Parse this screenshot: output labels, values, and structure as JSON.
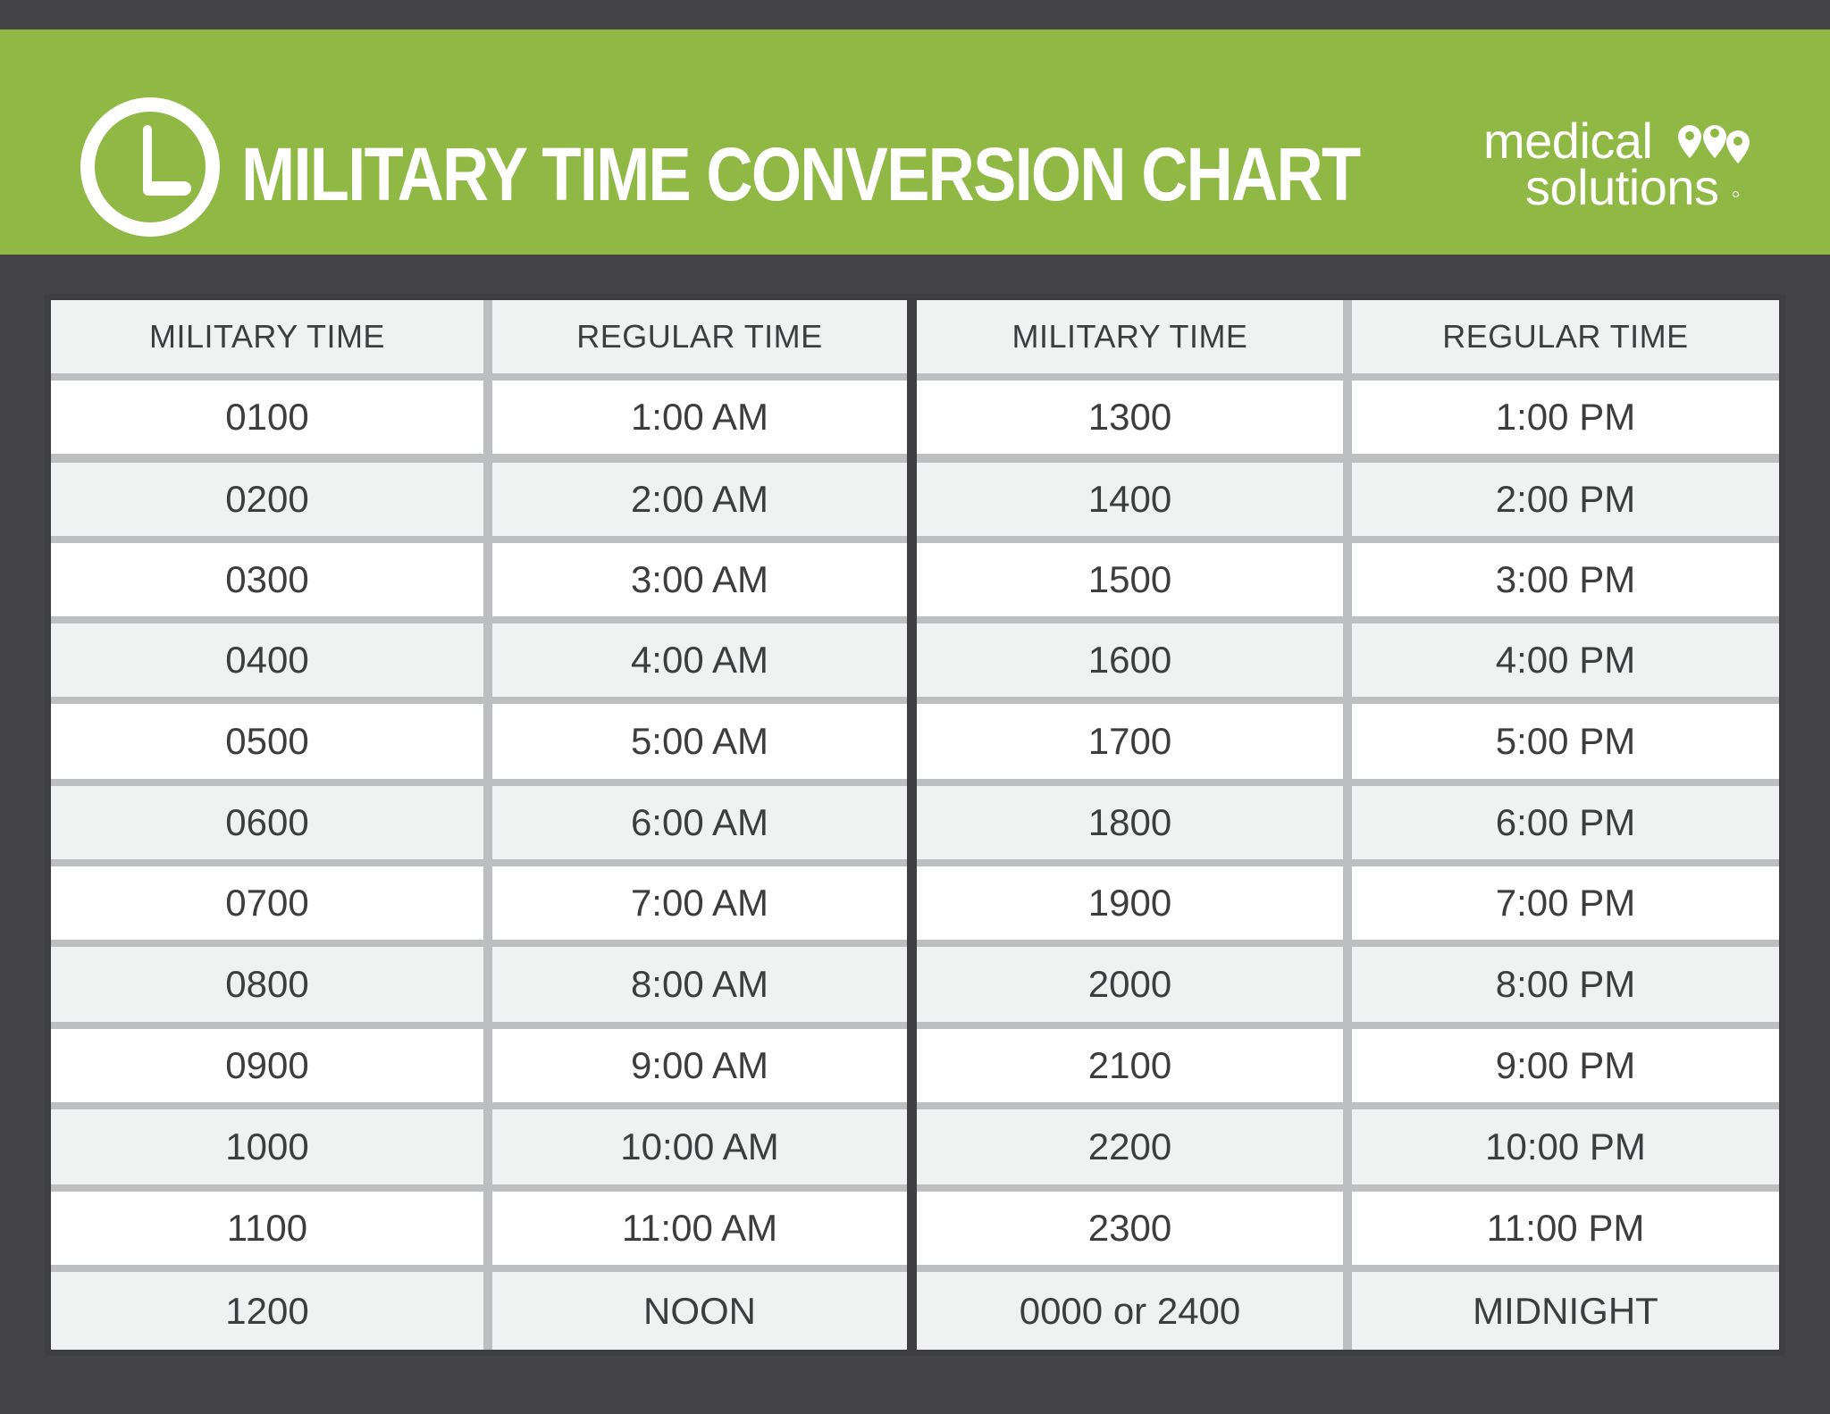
{
  "header": {
    "title": "MILITARY TIME CONVERSION CHART",
    "icon": "clock-icon",
    "brand": {
      "line1": "medical",
      "line2": "solutions",
      "icon": "location-pins-icon"
    }
  },
  "colors": {
    "banner": "#90b845",
    "background": "#444446",
    "text": "#3d3d3f",
    "row_grey": "#f0f2f1",
    "row_white": "#ffffff",
    "grid_line": "#bdbec0"
  },
  "table": {
    "headers": {
      "left": [
        "MILITARY TIME",
        "REGULAR TIME"
      ],
      "right": [
        "MILITARY TIME",
        "REGULAR TIME"
      ]
    },
    "left_rows": [
      [
        "0100",
        "1:00 AM"
      ],
      [
        "0200",
        "2:00 AM"
      ],
      [
        "0300",
        "3:00 AM"
      ],
      [
        "0400",
        "4:00 AM"
      ],
      [
        "0500",
        "5:00 AM"
      ],
      [
        "0600",
        "6:00 AM"
      ],
      [
        "0700",
        "7:00 AM"
      ],
      [
        "0800",
        "8:00 AM"
      ],
      [
        "0900",
        "9:00 AM"
      ],
      [
        "1000",
        "10:00 AM"
      ],
      [
        "1100",
        "11:00 AM"
      ],
      [
        "1200",
        "NOON"
      ]
    ],
    "right_rows": [
      [
        "1300",
        "1:00 PM"
      ],
      [
        "1400",
        "2:00 PM"
      ],
      [
        "1500",
        "3:00 PM"
      ],
      [
        "1600",
        "4:00 PM"
      ],
      [
        "1700",
        "5:00 PM"
      ],
      [
        "1800",
        "6:00 PM"
      ],
      [
        "1900",
        "7:00 PM"
      ],
      [
        "2000",
        "8:00 PM"
      ],
      [
        "2100",
        "9:00 PM"
      ],
      [
        "2200",
        "10:00 PM"
      ],
      [
        "2300",
        "11:00 PM"
      ],
      [
        "0000 or 2400",
        "MIDNIGHT"
      ]
    ]
  }
}
